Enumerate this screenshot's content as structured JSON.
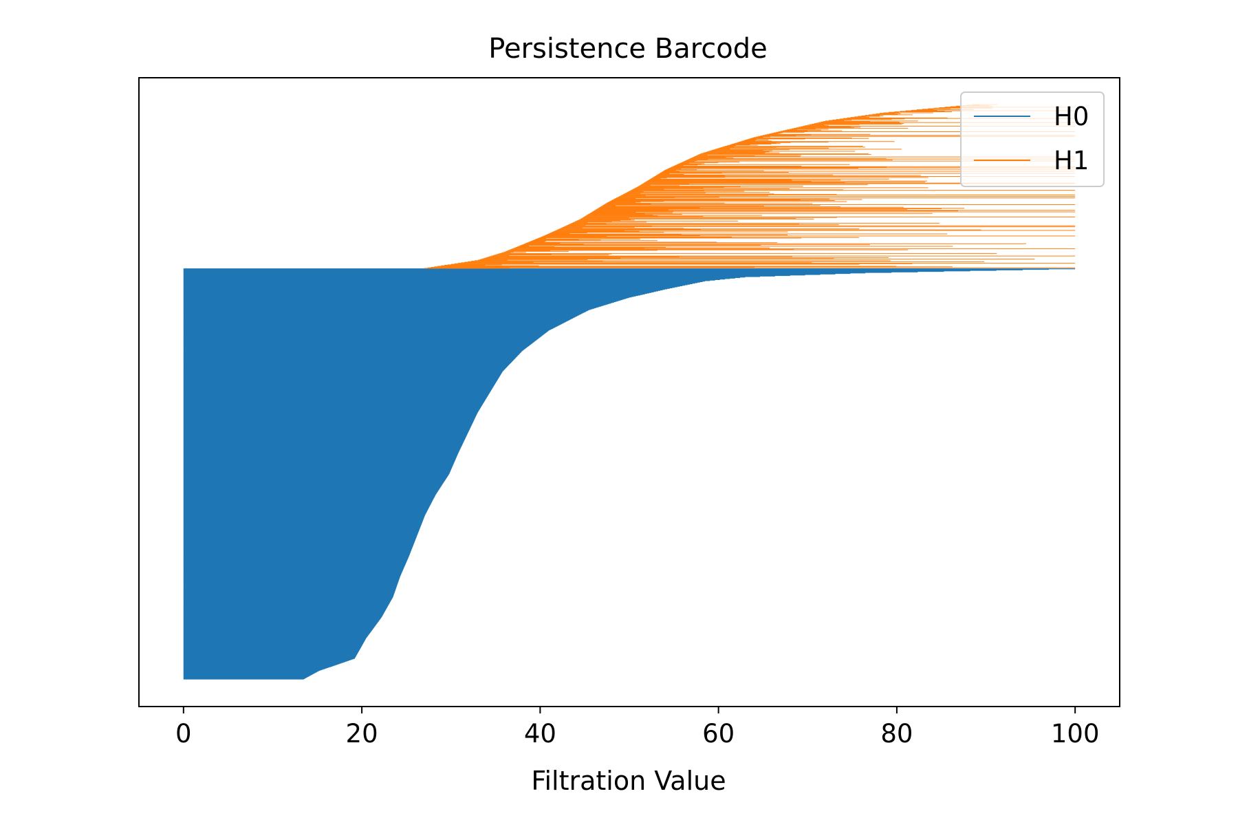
{
  "chart_data": {
    "type": "barcode",
    "title": "Persistence Barcode",
    "xlabel": "Filtration Value",
    "ylabel": "",
    "xlim": [
      -5,
      105
    ],
    "xticks": [
      0,
      20,
      40,
      60,
      80,
      100
    ],
    "xtick_labels": [
      "0",
      "20",
      "40",
      "60",
      "80",
      "100"
    ],
    "grid": false,
    "legend": {
      "placement": "upper right",
      "entries": [
        {
          "name": "H0",
          "color": "#1f77b4"
        },
        {
          "name": "H1",
          "color": "#ff7f0e"
        }
      ]
    },
    "series": [
      {
        "name": "H0",
        "color": "#1f77b4",
        "bar_count": 800,
        "birth": 0,
        "max_death": 100,
        "death_profile": [
          {
            "rank": 0.0,
            "death": 13.5
          },
          {
            "rank": 0.02,
            "death": 15.2
          },
          {
            "rank": 0.05,
            "death": 19.2
          },
          {
            "rank": 0.1,
            "death": 20.5
          },
          {
            "rank": 0.15,
            "death": 22.2
          },
          {
            "rank": 0.2,
            "death": 23.5
          },
          {
            "rank": 0.25,
            "death": 24.3
          },
          {
            "rank": 0.3,
            "death": 25.3
          },
          {
            "rank": 0.35,
            "death": 26.2
          },
          {
            "rank": 0.4,
            "death": 27.1
          },
          {
            "rank": 0.45,
            "death": 28.3
          },
          {
            "rank": 0.5,
            "death": 29.8
          },
          {
            "rank": 0.55,
            "death": 30.8
          },
          {
            "rank": 0.6,
            "death": 31.9
          },
          {
            "rank": 0.65,
            "death": 33.0
          },
          {
            "rank": 0.7,
            "death": 34.4
          },
          {
            "rank": 0.75,
            "death": 35.8
          },
          {
            "rank": 0.8,
            "death": 38.0
          },
          {
            "rank": 0.85,
            "death": 41.0
          },
          {
            "rank": 0.9,
            "death": 45.5
          },
          {
            "rank": 0.93,
            "death": 50.0
          },
          {
            "rank": 0.95,
            "death": 54.0
          },
          {
            "rank": 0.97,
            "death": 58.5
          },
          {
            "rank": 0.98,
            "death": 63.0
          },
          {
            "rank": 0.99,
            "death": 76.5
          },
          {
            "rank": 1.0,
            "death": 100
          }
        ]
      },
      {
        "name": "H1",
        "color": "#ff7f0e",
        "bar_count": 320,
        "birth_profile": [
          {
            "rank": 0.0,
            "birth": 27.0
          },
          {
            "rank": 0.05,
            "birth": 33.0
          },
          {
            "rank": 0.1,
            "birth": 36.0
          },
          {
            "rank": 0.2,
            "birth": 40.5
          },
          {
            "rank": 0.3,
            "birth": 44.5
          },
          {
            "rank": 0.4,
            "birth": 47.5
          },
          {
            "rank": 0.5,
            "birth": 51.0
          },
          {
            "rank": 0.6,
            "birth": 54.0
          },
          {
            "rank": 0.7,
            "birth": 58.0
          },
          {
            "rank": 0.8,
            "birth": 64.0
          },
          {
            "rank": 0.9,
            "birth": 72.0
          },
          {
            "rank": 0.95,
            "birth": 78.5
          },
          {
            "rank": 1.0,
            "birth": 88.5
          }
        ],
        "death_range": [
          38,
          100
        ]
      }
    ]
  }
}
